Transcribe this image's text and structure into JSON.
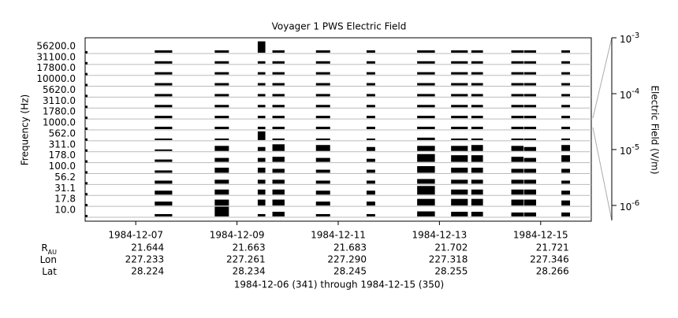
{
  "chart_data": {
    "type": "channels",
    "title": "Voyager 1 PWS Electric Field",
    "ylabel": "Frequency (Hz)",
    "y2label": "Electric Field (V/m)",
    "color": "#000000",
    "xlim": [
      341,
      351
    ],
    "xticks": [
      {
        "value": 342,
        "label": "1984-12-07"
      },
      {
        "value": 344,
        "label": "1984-12-09"
      },
      {
        "value": 346,
        "label": "1984-12-11"
      },
      {
        "value": 348,
        "label": "1984-12-13"
      },
      {
        "value": 350,
        "label": "1984-12-15"
      }
    ],
    "y2lim": [
      5.4e-07,
      0.001
    ],
    "y2scale": "log",
    "y2ticks": [
      {
        "value": 1e-06,
        "label": "10",
        "exponent": "-6"
      },
      {
        "value": 1e-05,
        "label": "10",
        "exponent": "-5"
      },
      {
        "value": 0.0001,
        "label": "10",
        "exponent": "-4"
      },
      {
        "value": 0.001,
        "label": "10",
        "exponent": "-3"
      }
    ],
    "grid": true,
    "intervals": [
      [
        342.375,
        342.72
      ],
      [
        343.56,
        343.84
      ],
      [
        344.41,
        344.56
      ],
      [
        344.7,
        344.94
      ],
      [
        345.56,
        345.84
      ],
      [
        346.56,
        346.73
      ],
      [
        347.56,
        347.91
      ],
      [
        348.23,
        348.56
      ],
      [
        348.63,
        348.86
      ],
      [
        349.42,
        349.66
      ],
      [
        349.67,
        349.91
      ],
      [
        350.41,
        350.58
      ]
    ],
    "series": [
      {
        "name": "10.0",
        "values": [
          1e-06,
          8e-06,
          1e-06,
          1.8e-06,
          1e-06,
          1e-06,
          2e-06,
          1.8e-06,
          1.8e-06,
          1.5e-06,
          1.5e-06,
          1.5e-06
        ]
      },
      {
        "name": "17.8",
        "values": [
          1.5e-06,
          2.5e-06,
          2.5e-06,
          2.5e-06,
          1.5e-06,
          1.5e-06,
          3e-06,
          3e-06,
          3e-06,
          2.5e-06,
          2.5e-06,
          2e-06
        ]
      },
      {
        "name": "31.1",
        "values": [
          1.5e-06,
          2e-06,
          2e-06,
          2e-06,
          1.5e-06,
          1.5e-06,
          5e-06,
          2e-06,
          2e-06,
          2e-06,
          2e-06,
          1.5e-06
        ]
      },
      {
        "name": "56.2",
        "values": [
          1.2e-06,
          1.5e-06,
          1.5e-06,
          1.5e-06,
          1.2e-06,
          1.2e-06,
          1.8e-06,
          1.5e-06,
          1.5e-06,
          1.5e-06,
          1.5e-06,
          1.2e-06
        ]
      },
      {
        "name": "100.0",
        "values": [
          1e-06,
          2e-06,
          2e-06,
          1.5e-06,
          1.2e-06,
          1.2e-06,
          3e-06,
          2e-06,
          2e-06,
          1.5e-06,
          1.5e-06,
          1.5e-06
        ]
      },
      {
        "name": "178.0",
        "values": [
          1e-06,
          1.5e-06,
          1.5e-06,
          2e-06,
          1.5e-06,
          1.2e-06,
          4e-06,
          3e-06,
          3e-06,
          2e-06,
          1.5e-06,
          3e-06
        ]
      },
      {
        "name": "311.0",
        "values": [
          8e-07,
          2e-06,
          1.5e-06,
          3e-06,
          2.5e-06,
          1.5e-06,
          2e-06,
          2e-06,
          2.5e-06,
          2e-06,
          1.5e-06,
          2.5e-06
        ]
      },
      {
        "name": "562.0",
        "values": [
          8e-07,
          8e-07,
          5e-06,
          8e-07,
          8e-07,
          8e-07,
          1e-06,
          8e-07,
          8e-07,
          8e-07,
          8e-07,
          8e-07
        ]
      },
      {
        "name": "1000.0",
        "values": [
          1e-06,
          1e-06,
          1e-06,
          1e-06,
          1e-06,
          1e-06,
          1e-06,
          1e-06,
          1e-06,
          1e-06,
          1e-06,
          1e-06
        ]
      },
      {
        "name": "1780.0",
        "values": [
          1e-06,
          1e-06,
          1e-06,
          1e-06,
          1e-06,
          1e-06,
          1e-06,
          1e-06,
          1e-06,
          1e-06,
          1e-06,
          1e-06
        ]
      },
      {
        "name": "3110.0",
        "values": [
          1e-06,
          1e-06,
          1e-06,
          1e-06,
          1e-06,
          1e-06,
          1e-06,
          1e-06,
          1e-06,
          1e-06,
          1e-06,
          1e-06
        ]
      },
      {
        "name": "5620.0",
        "values": [
          1e-06,
          1e-06,
          1e-06,
          1e-06,
          1e-06,
          1e-06,
          1e-06,
          1e-06,
          1e-06,
          1e-06,
          1e-06,
          1e-06
        ]
      },
      {
        "name": "10000.0",
        "values": [
          1e-06,
          1e-06,
          1e-06,
          1e-06,
          1e-06,
          1e-06,
          1e-06,
          1e-06,
          1e-06,
          1e-06,
          1e-06,
          1e-06
        ]
      },
      {
        "name": "17800.0",
        "values": [
          1e-06,
          1e-06,
          1e-06,
          1e-06,
          1e-06,
          1e-06,
          1e-06,
          1e-06,
          1e-06,
          1e-06,
          1e-06,
          1e-06
        ]
      },
      {
        "name": "31100.0",
        "values": [
          1e-06,
          1e-06,
          1e-06,
          1e-06,
          1e-06,
          1e-06,
          1e-06,
          1e-06,
          1e-06,
          1e-06,
          1e-06,
          1e-06
        ]
      },
      {
        "name": "56200.0",
        "values": [
          1e-06,
          1e-06,
          1e-05,
          1e-06,
          1e-06,
          1e-06,
          1e-06,
          1e-06,
          1e-06,
          1e-06,
          1e-06,
          1e-06
        ]
      }
    ],
    "ephemeris": [
      {
        "label": "R",
        "subscript": "AU",
        "values": [
          "21.644",
          "21.663",
          "21.683",
          "21.702",
          "21.721"
        ]
      },
      {
        "label": "Lon",
        "values": [
          "227.233",
          "227.261",
          "227.290",
          "227.318",
          "227.346"
        ]
      },
      {
        "label": "Lat",
        "values": [
          "28.224",
          "28.234",
          "28.245",
          "28.255",
          "28.266"
        ]
      }
    ],
    "caption": "1984-12-06 (341) through 1984-12-15 (350)"
  }
}
